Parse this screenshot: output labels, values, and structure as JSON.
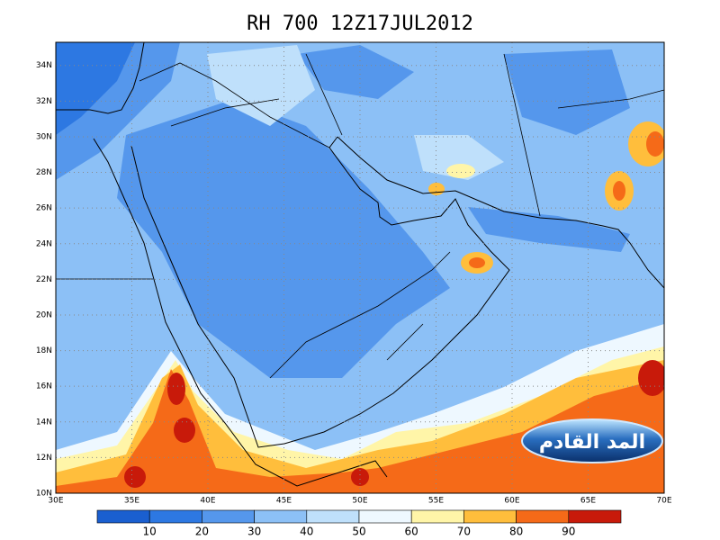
{
  "title": "RH 700 12Z17JUL2012",
  "map": {
    "xlim": [
      30,
      70
    ],
    "ylim": [
      10,
      35.3
    ],
    "xticks": [
      {
        "value": 30,
        "label": "30E"
      },
      {
        "value": 35,
        "label": "35E"
      },
      {
        "value": 40,
        "label": "40E"
      },
      {
        "value": 45,
        "label": "45E"
      },
      {
        "value": 50,
        "label": "50E"
      },
      {
        "value": 55,
        "label": "55E"
      },
      {
        "value": 60,
        "label": "60E"
      },
      {
        "value": 65,
        "label": "65E"
      },
      {
        "value": 70,
        "label": "70E"
      }
    ],
    "yticks": [
      {
        "value": 10,
        "label": "10N"
      },
      {
        "value": 12,
        "label": "12N"
      },
      {
        "value": 14,
        "label": "14N"
      },
      {
        "value": 16,
        "label": "16N"
      },
      {
        "value": 18,
        "label": "18N"
      },
      {
        "value": 20,
        "label": "20N"
      },
      {
        "value": 22,
        "label": "22N"
      },
      {
        "value": 24,
        "label": "24N"
      },
      {
        "value": 26,
        "label": "26N"
      },
      {
        "value": 28,
        "label": "28N"
      },
      {
        "value": 30,
        "label": "30N"
      },
      {
        "value": 32,
        "label": "32N"
      },
      {
        "value": 34,
        "label": "34N"
      }
    ],
    "grid": true
  },
  "colorbar": {
    "levels": [
      10,
      20,
      30,
      40,
      50,
      60,
      70,
      80,
      90
    ],
    "colors": [
      "#1a5fd0",
      "#2d78e2",
      "#5597ec",
      "#8cc0f6",
      "#bfe0fb",
      "#eef8ff",
      "#fff5a8",
      "#ffbe3c",
      "#f56a18",
      "#c81a0a"
    ]
  },
  "logo": {
    "text": "المد القادم"
  }
}
